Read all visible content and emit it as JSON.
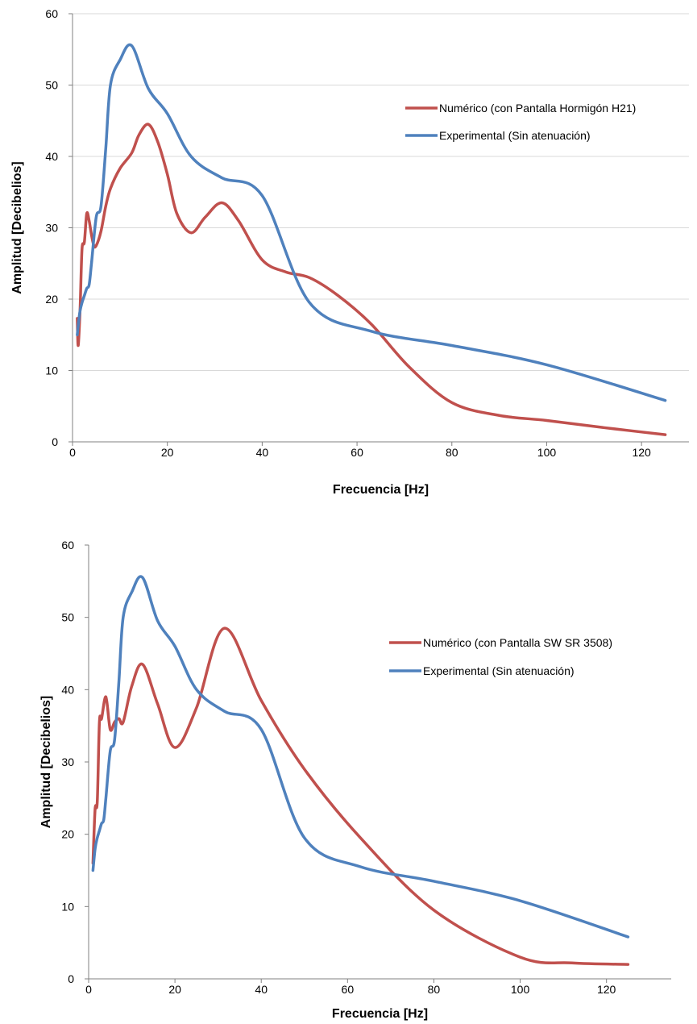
{
  "chart_data": [
    {
      "type": "line",
      "xlabel": "Frecuencia [Hz]",
      "ylabel": "Amplitud [Decibelios]",
      "xlim": [
        0,
        130
      ],
      "ylim": [
        0,
        60
      ],
      "x_ticks": [
        0,
        20,
        40,
        60,
        80,
        100,
        120
      ],
      "y_ticks": [
        0,
        10,
        20,
        30,
        40,
        50,
        60
      ],
      "grid": "horizontal",
      "legend_position": "right",
      "series": [
        {
          "name": "Numérico (con Pantalla Hormigón H21)",
          "color": "#c0504d",
          "x": [
            1,
            1.2,
            1.6,
            2,
            2.5,
            3,
            3.5,
            4,
            4.5,
            5,
            6,
            7,
            8,
            10,
            12.5,
            14,
            16,
            18,
            20,
            22,
            25,
            28,
            31.5,
            35,
            40,
            45,
            50,
            56,
            63,
            71,
            80,
            90,
            100,
            112,
            125
          ],
          "y": [
            17.3,
            13.5,
            18.7,
            27,
            28,
            32,
            31,
            29,
            27.5,
            27.5,
            29.5,
            33,
            35.5,
            38.3,
            40.5,
            43,
            44.5,
            42,
            37.5,
            32,
            29.3,
            31.5,
            33.5,
            31,
            25.5,
            23.8,
            23,
            20.5,
            16.5,
            10.5,
            5.5,
            3.7,
            3,
            2,
            1
          ]
        },
        {
          "name": "Experimental (Sin atenuación)",
          "color": "#4f81bd",
          "x": [
            1,
            1.5,
            2,
            2.5,
            3,
            3.5,
            4,
            5,
            6,
            7,
            8,
            10,
            12.5,
            16,
            20,
            25,
            31.5,
            40,
            50,
            63,
            80,
            100,
            125
          ],
          "y": [
            15,
            18,
            19.5,
            20.5,
            21.5,
            22,
            25,
            31.5,
            33,
            41,
            50,
            53.5,
            55.5,
            49.5,
            46,
            40,
            37,
            34.5,
            19.5,
            15.5,
            13.5,
            10.8,
            5.8
          ]
        }
      ]
    },
    {
      "type": "line",
      "xlabel": "Frecuencia [Hz]",
      "ylabel": "Amplitud [Decibelios]",
      "xlim": [
        0,
        135
      ],
      "ylim": [
        0,
        60
      ],
      "x_ticks": [
        0,
        20,
        40,
        60,
        80,
        100,
        120
      ],
      "y_ticks": [
        0,
        10,
        20,
        30,
        40,
        50,
        60
      ],
      "grid": "none",
      "legend_position": "right",
      "series": [
        {
          "name": "Numérico (con Pantalla SW SR 3508)",
          "color": "#c0504d",
          "x": [
            1,
            1.5,
            2,
            2.5,
            3,
            4,
            5,
            6,
            7,
            8,
            10,
            12.5,
            16,
            20,
            25,
            31.5,
            40,
            50,
            63,
            80,
            100,
            112,
            125
          ],
          "y": [
            16,
            23.5,
            24.5,
            35.5,
            36,
            39,
            34.5,
            35.5,
            36,
            35.5,
            40.5,
            43.5,
            38,
            32,
            37.5,
            48.5,
            38.5,
            29,
            19.5,
            9.5,
            3,
            2.2,
            2
          ]
        },
        {
          "name": "Experimental (Sin atenuación)",
          "color": "#4f81bd",
          "x": [
            1,
            1.5,
            2,
            2.5,
            3,
            3.5,
            4,
            5,
            6,
            7,
            8,
            10,
            12.5,
            16,
            20,
            25,
            31.5,
            40,
            50,
            63,
            80,
            100,
            125
          ],
          "y": [
            15,
            18,
            19.5,
            20.5,
            21.5,
            22,
            25,
            31.5,
            33,
            41,
            50,
            53.5,
            55.5,
            49.5,
            46,
            40,
            37,
            34.5,
            19.5,
            15.5,
            13.5,
            10.8,
            5.8
          ]
        }
      ]
    }
  ]
}
